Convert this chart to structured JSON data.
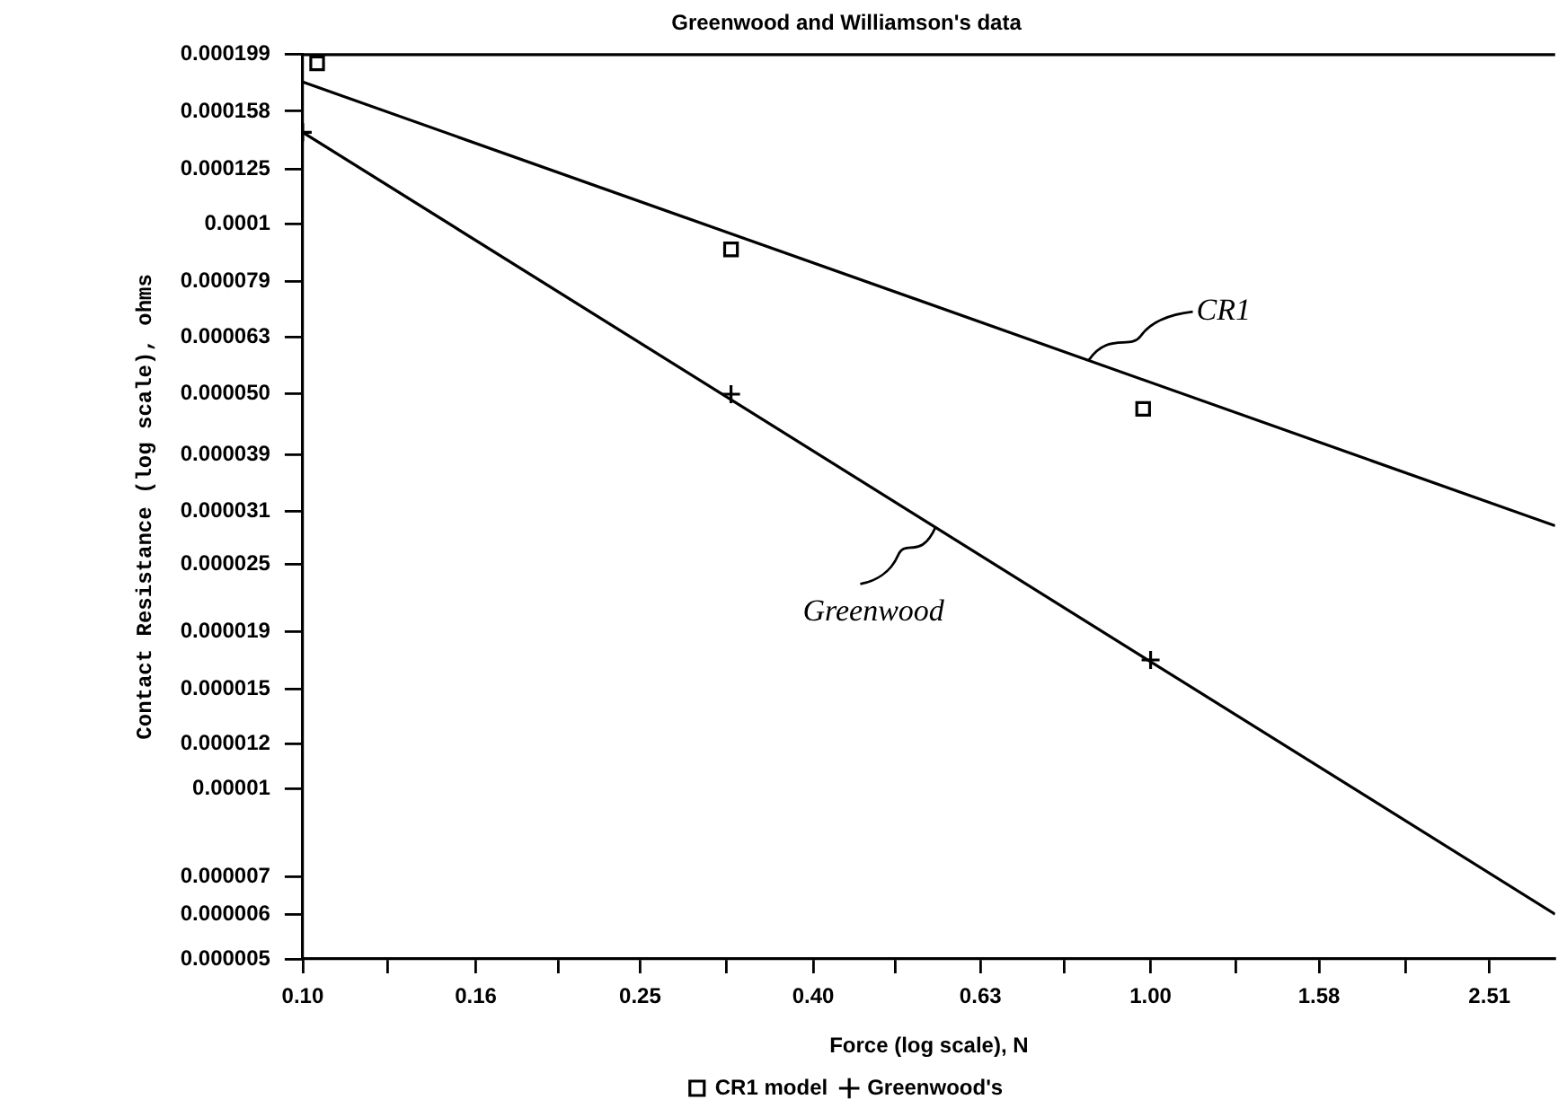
{
  "chart_data": {
    "type": "scatter",
    "title": "Greenwood and Williamson's data",
    "xlabel": "Force (log scale), N",
    "ylabel": "Contact Resistance (log scale), ohms",
    "log": "xy",
    "grid": false,
    "legend": "bottom",
    "xlim": [
      0.1,
      3.0
    ],
    "ylim": [
      5e-06,
      0.000199
    ],
    "xticks": [
      {
        "value": 0.1,
        "label": "0.10"
      },
      {
        "value": 0.126,
        "label": null
      },
      {
        "value": 0.16,
        "label": "0.16"
      },
      {
        "value": 0.2,
        "label": null
      },
      {
        "value": 0.25,
        "label": "0.25"
      },
      {
        "value": 0.316,
        "label": null
      },
      {
        "value": 0.4,
        "label": "0.40"
      },
      {
        "value": 0.5,
        "label": null
      },
      {
        "value": 0.63,
        "label": "0.63"
      },
      {
        "value": 0.79,
        "label": null
      },
      {
        "value": 1.0,
        "label": "1.00"
      },
      {
        "value": 1.26,
        "label": null
      },
      {
        "value": 1.58,
        "label": "1.58"
      },
      {
        "value": 2.0,
        "label": null
      },
      {
        "value": 2.51,
        "label": "2.51"
      }
    ],
    "yticks": [
      {
        "value": 0.000199,
        "label": "0.000199"
      },
      {
        "value": 0.000158,
        "label": "0.000158"
      },
      {
        "value": 0.000125,
        "label": "0.000125"
      },
      {
        "value": 0.0001,
        "label": "0.0001"
      },
      {
        "value": 7.9e-05,
        "label": "0.000079"
      },
      {
        "value": 6.3e-05,
        "label": "0.000063"
      },
      {
        "value": 5e-05,
        "label": "0.000050"
      },
      {
        "value": 3.9e-05,
        "label": "0.000039"
      },
      {
        "value": 3.1e-05,
        "label": "0.000031"
      },
      {
        "value": 2.5e-05,
        "label": "0.000025"
      },
      {
        "value": 1.9e-05,
        "label": "0.000019"
      },
      {
        "value": 1.5e-05,
        "label": "0.000015"
      },
      {
        "value": 1.2e-05,
        "label": "0.000012"
      },
      {
        "value": 1e-05,
        "label": "0.00001"
      },
      {
        "value": 7e-06,
        "label": "0.000007"
      },
      {
        "value": 6e-06,
        "label": "0.000006"
      },
      {
        "value": 5e-06,
        "label": "0.000005"
      }
    ],
    "series": [
      {
        "name": "CR1 model",
        "type": "scatter",
        "marker": "square",
        "color": "#000000",
        "x": [
          0.104,
          0.32,
          0.98
        ],
        "values": [
          0.000192,
          9e-05,
          4.7e-05
        ]
      },
      {
        "name": "Greenwood's",
        "type": "scatter",
        "marker": "cross",
        "color": "#000000",
        "x": [
          0.1,
          0.32,
          1.0
        ],
        "values": [
          0.000145,
          4.99e-05,
          1.69e-05
        ]
      },
      {
        "type": "line",
        "marker": "none",
        "color": "#000000",
        "x": [
          0.1,
          3.0
        ],
        "values": [
          0.000178,
          2.92e-05
        ]
      },
      {
        "type": "line",
        "marker": "none",
        "color": "#000000",
        "x": [
          0.1,
          3.0
        ],
        "values": [
          0.000145,
          6e-06
        ]
      }
    ],
    "annotations": [
      {
        "text": "CR1",
        "x": 0.845,
        "y": 5.73e-05
      },
      {
        "text": "Greenwood",
        "x": 0.558,
        "y": 2.91e-05
      }
    ]
  }
}
